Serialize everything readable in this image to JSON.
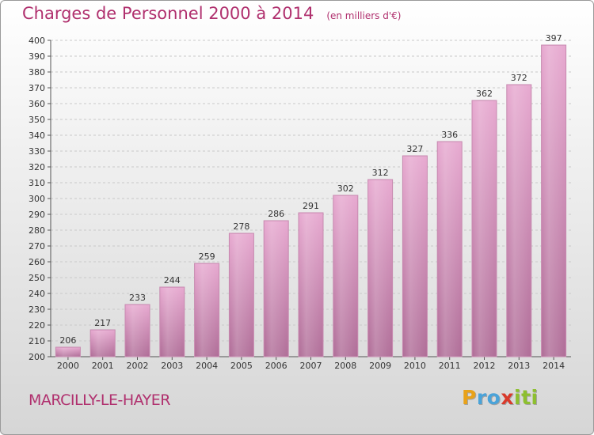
{
  "title": {
    "main": "Charges de Personnel 2000 à 2014",
    "sub": "(en milliers d'€)"
  },
  "commune": "MARCILLY-LE-HAYER",
  "logo": {
    "letters": [
      {
        "char": "P",
        "color": "#e8a21a"
      },
      {
        "char": "r",
        "color": "#4aa3d9"
      },
      {
        "char": "o",
        "color": "#4aa3d9"
      },
      {
        "char": "x",
        "color": "#d93a2b"
      },
      {
        "char": "i",
        "color": "#8dbf2f"
      },
      {
        "char": "t",
        "color": "#8dbf2f"
      },
      {
        "char": "i",
        "color": "#8dbf2f"
      }
    ]
  },
  "colors": {
    "title": "#b0306e",
    "bar_top": "#e7a9d0",
    "bar_bottom": "#b06e98",
    "bar_stroke": "#c78ab0",
    "axis_text": "#333333"
  },
  "chart_data": {
    "type": "bar",
    "categories": [
      "2000",
      "2001",
      "2002",
      "2003",
      "2004",
      "2005",
      "2006",
      "2007",
      "2008",
      "2009",
      "2010",
      "2011",
      "2012",
      "2013",
      "2014"
    ],
    "values": [
      206,
      217,
      233,
      244,
      259,
      278,
      286,
      291,
      302,
      312,
      327,
      336,
      362,
      372,
      397
    ],
    "title": "Charges de Personnel 2000 à 2014",
    "subtitle": "(en milliers d'€)",
    "ylim": [
      200,
      400
    ],
    "yticks": [
      200,
      210,
      220,
      230,
      240,
      250,
      260,
      270,
      280,
      290,
      300,
      310,
      320,
      330,
      340,
      350,
      360,
      370,
      380,
      390,
      400
    ],
    "grid": true,
    "data_labels": true
  }
}
